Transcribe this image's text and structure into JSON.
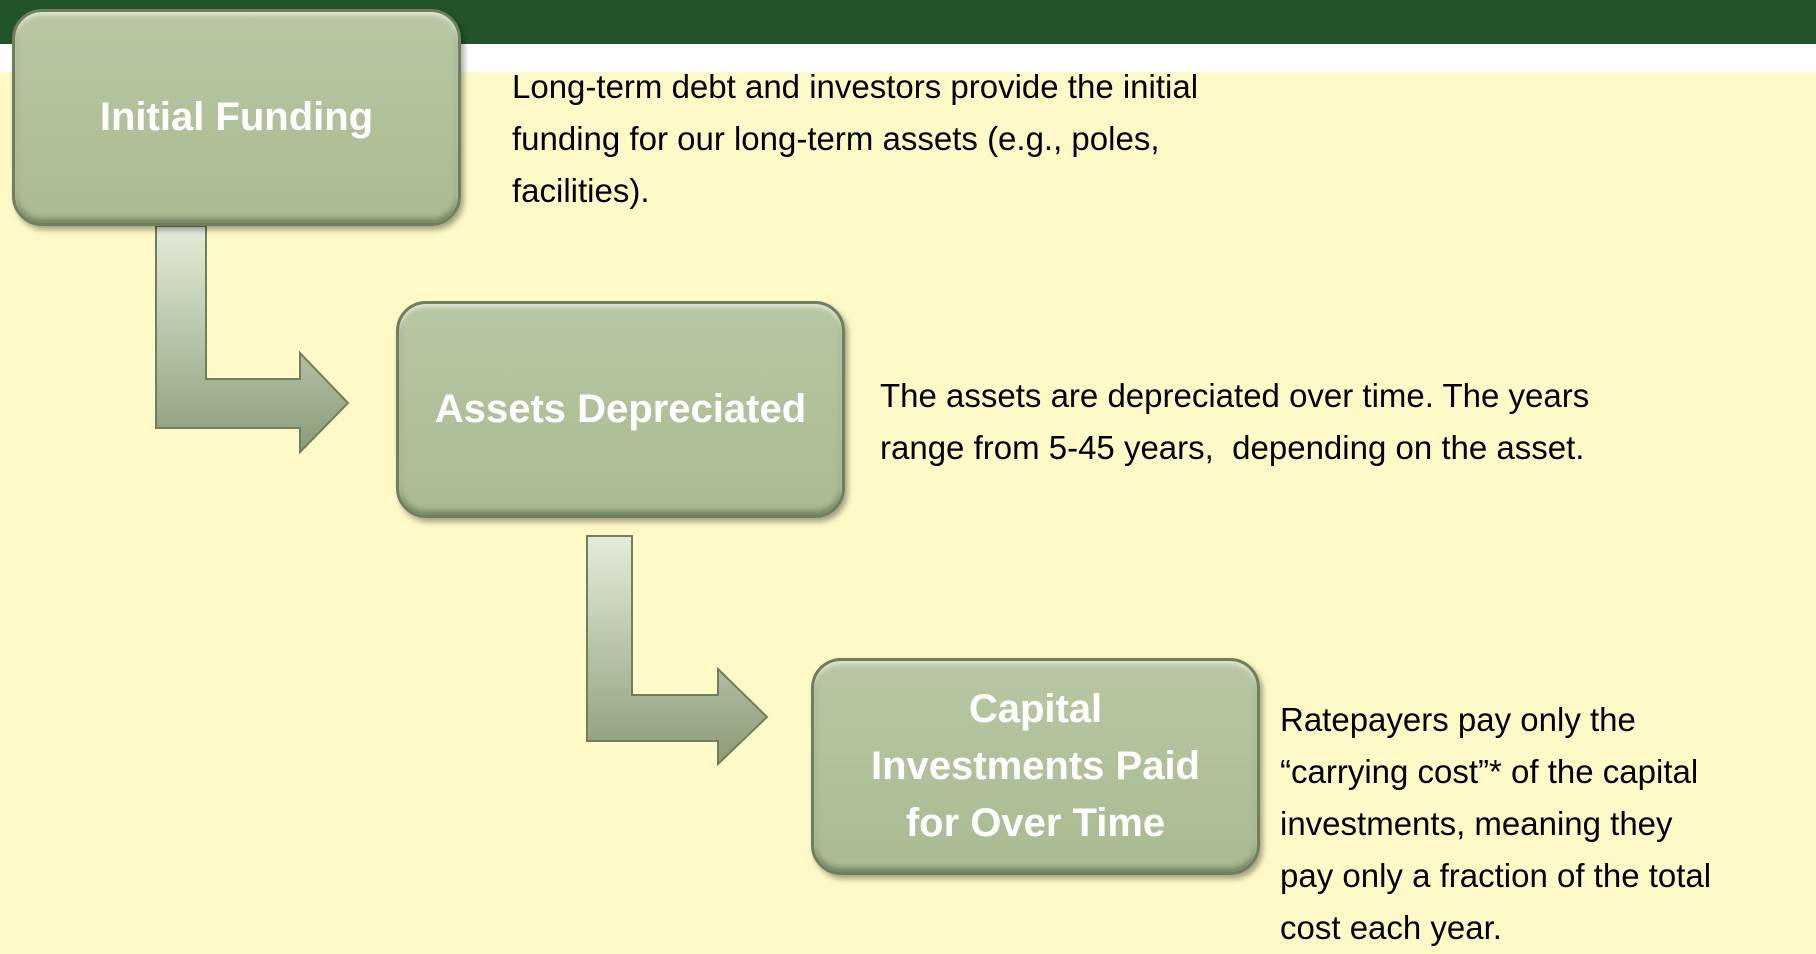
{
  "nodes": [
    {
      "label": [
        "Initial Funding"
      ],
      "description": [
        "Long-term debt and investors provide the initial",
        "funding for our long-term assets (e.g., poles,",
        "facilities)."
      ]
    },
    {
      "label": [
        "Assets Depreciated"
      ],
      "description": [
        "The assets are depreciated over time. The years",
        "range from 5-45 years,  depending on the asset."
      ]
    },
    {
      "label": [
        "Capital",
        "Investments Paid",
        "for Over Time"
      ],
      "description": [
        "Ratepayers pay only the",
        "“carrying cost”* of the capital",
        "investments, meaning they",
        "pay only a fraction of the total",
        "cost each year."
      ]
    }
  ]
}
